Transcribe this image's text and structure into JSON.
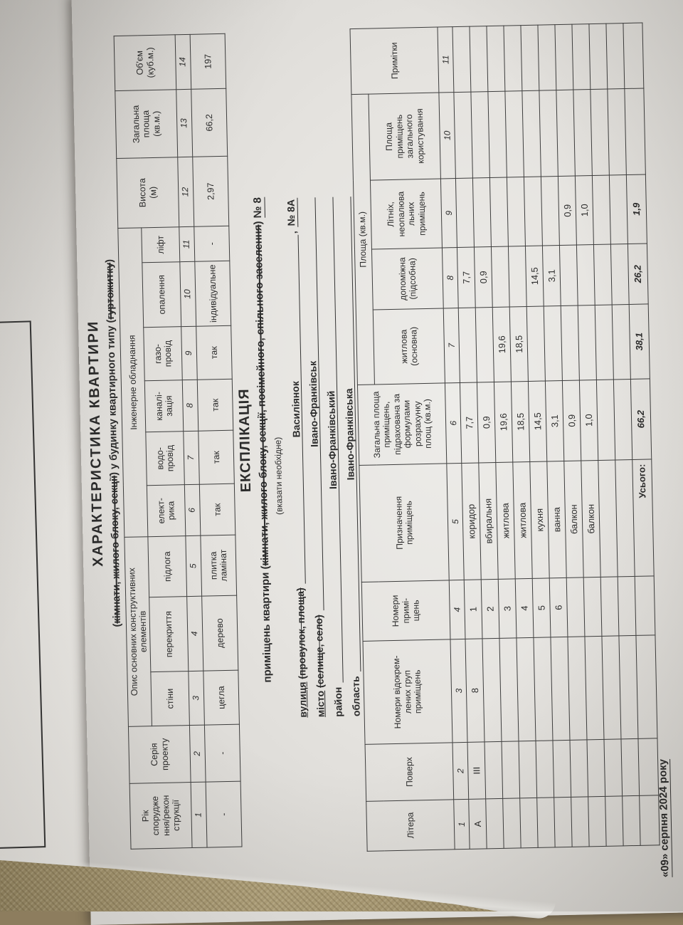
{
  "page": {
    "title": "ХАРАКТЕРИСТИКА КВАРТИРИ",
    "subtitle": {
      "open": "(",
      "struck1": "кімнати, жилого блоку, секції",
      "mid": ") у будинку квартирного типу (",
      "struck2": "гуртожитку",
      "close": ")"
    }
  },
  "upper_table": {
    "construction_group": "Опис основних конструктивних\nелементів",
    "engineering_group": "Інженерне обладнання",
    "columns": [
      {
        "label": "Рік\nспорудже\nння/рекон\nструкції",
        "num": "1",
        "value": "-"
      },
      {
        "label": "Серія\nпроекту",
        "num": "2",
        "value": "-"
      },
      {
        "label": "стіни",
        "num": "3",
        "value": "цегла"
      },
      {
        "label": "перекриття",
        "num": "4",
        "value": "дерево"
      },
      {
        "label": "підлога",
        "num": "5",
        "value": "плитка\nламінат"
      },
      {
        "label": "елект-\nрика",
        "num": "6",
        "value": "так"
      },
      {
        "label": "водо-\nпровід",
        "num": "7",
        "value": "так"
      },
      {
        "label": "каналі-\nзація",
        "num": "8",
        "value": "так"
      },
      {
        "label": "газо-\nпровід",
        "num": "9",
        "value": "так"
      },
      {
        "label": "опалення",
        "num": "10",
        "value": "індивідуальне"
      },
      {
        "label": "ліфт",
        "num": "11",
        "value": "-"
      },
      {
        "label": "Висота\n(м)",
        "num": "12",
        "value": "2,97"
      },
      {
        "label": "Загальна\nплоща\n(кв.м.)",
        "num": "13",
        "value": "66,2"
      },
      {
        "label": "Об'єм\n(куб.м.)",
        "num": "14",
        "value": "197"
      }
    ]
  },
  "explication": {
    "heading": "ЕКСПЛІКАЦІЯ",
    "line_prefix": "приміщень квартири (",
    "line_struck": "кімнати, жилого блоку, секції, посімейного, спільного заселення",
    "line_close": ") ",
    "apartment_number": "№ 8",
    "note": "(вказати необхідне)",
    "address": [
      {
        "label": "вулиця",
        "label_underlined": true,
        "paren": "(провулок, площа)",
        "value": "Василіянок",
        "suffix": ",",
        "suffix_value": "№ 8А"
      },
      {
        "label": "місто",
        "label_underlined": true,
        "paren": "(селище, село)",
        "value": "Івано-Франківськ"
      },
      {
        "label": "район",
        "label_underlined": false,
        "paren": "",
        "value": "Івано-Франківський"
      },
      {
        "label": "область",
        "label_underlined": false,
        "paren": "",
        "value": "Івано-Франківська"
      }
    ]
  },
  "lower_table": {
    "area_group": "Площа (кв.м.)",
    "columns": [
      {
        "label": "Літера",
        "num": "1"
      },
      {
        "label": "Поверх",
        "num": "2"
      },
      {
        "label": "Номери відокрем-\nлених груп\nприміщень",
        "num": "3"
      },
      {
        "label": "Номери\nпримі-\nщень",
        "num": "4"
      },
      {
        "label": "Призначення\nприміщень",
        "num": "5"
      },
      {
        "label": "Загальна площа\nприміщень,\nпідрахована за\nформулами\nрозрахунку\nплощ (кв.м.)",
        "num": "6"
      },
      {
        "label": "житлова\n(основна)",
        "num": "7"
      },
      {
        "label": "допоміжна\n(підсобна)",
        "num": "8"
      },
      {
        "label": "Літніх,\nнеопалюва\nльних\nприміщень",
        "num": "9"
      },
      {
        "label": "Площа\nприміщень\nзагального\nкористування",
        "num": "10"
      },
      {
        "label": "Примітки",
        "num": "11"
      }
    ],
    "rows": [
      [
        "А",
        "ІІІ",
        "8",
        "1",
        "коридор",
        "7,7",
        "",
        "7,7",
        "",
        "",
        ""
      ],
      [
        "",
        "",
        "",
        "2",
        "вбиральня",
        "0,9",
        "",
        "0,9",
        "",
        "",
        ""
      ],
      [
        "",
        "",
        "",
        "3",
        "житлова",
        "19,6",
        "19,6",
        "",
        "",
        "",
        ""
      ],
      [
        "",
        "",
        "",
        "4",
        "житлова",
        "18,5",
        "18,5",
        "",
        "",
        "",
        ""
      ],
      [
        "",
        "",
        "",
        "5",
        "кухня",
        "14,5",
        "",
        "14,5",
        "",
        "",
        ""
      ],
      [
        "",
        "",
        "",
        "6",
        "ванна",
        "3,1",
        "",
        "3,1",
        "",
        "",
        ""
      ],
      [
        "",
        "",
        "",
        "",
        "балкон",
        "0,9",
        "",
        "",
        "0,9",
        "",
        ""
      ],
      [
        "",
        "",
        "",
        "",
        "балкон",
        "1,0",
        "",
        "",
        "1,0",
        "",
        ""
      ],
      [
        "",
        "",
        "",
        "",
        "",
        "",
        "",
        "",
        "",
        "",
        ""
      ],
      [
        "",
        "",
        "",
        "",
        "",
        "",
        "",
        "",
        "",
        "",
        ""
      ]
    ],
    "total_row": [
      "",
      "",
      "",
      "",
      "Усього:",
      "66,2",
      "38,1",
      "26,2",
      "1,9",
      "",
      ""
    ]
  },
  "footer": {
    "date_line": "«09» серпня  2024 року"
  },
  "colors": {
    "paper": "#e7e5e1",
    "fabric": "#a79770",
    "table_line": "#3e3e3e",
    "ink": "#2b2b2b"
  }
}
